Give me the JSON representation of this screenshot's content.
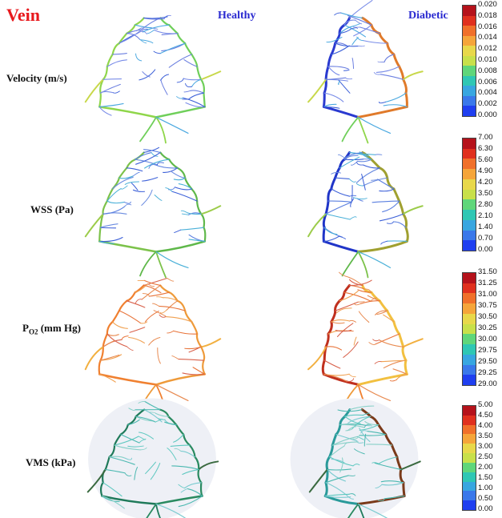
{
  "title": "Vein",
  "columns": {
    "healthy": "Healthy",
    "diabetic": "Diabetic"
  },
  "rows": [
    {
      "id": "velocity",
      "label": "Velocity (m/s)",
      "ticks": [
        "0.020",
        "0.018",
        "0.016",
        "0.014",
        "0.012",
        "0.010",
        "0.008",
        "0.006",
        "0.004",
        "0.002",
        "0.000"
      ]
    },
    {
      "id": "wss",
      "label": "WSS (Pa)",
      "ticks": [
        "7.00",
        "6.30",
        "5.60",
        "4.90",
        "4.20",
        "3.50",
        "2.80",
        "2.10",
        "1.40",
        "0.70",
        "0.00"
      ]
    },
    {
      "id": "po2",
      "label_main": "P",
      "label_sub": "O2",
      "label_rest": " (mm Hg)",
      "ticks": [
        "31.50",
        "31.25",
        "31.00",
        "30.75",
        "30.50",
        "30.25",
        "30.00",
        "29.75",
        "29.50",
        "29.25",
        "29.00"
      ]
    },
    {
      "id": "vms",
      "label": "VMS (kPa)",
      "ticks": [
        "5.00",
        "4.50",
        "4.00",
        "3.50",
        "3.00",
        "2.50",
        "2.00",
        "1.50",
        "1.00",
        "0.50",
        "0.00"
      ]
    }
  ],
  "colors": {
    "title": "#e8191d",
    "column_header": "#2a2ad0",
    "colorbar_top_to_bottom": [
      "#b5121b",
      "#e0301e",
      "#f0702a",
      "#f5a53a",
      "#e8d84a",
      "#c8e04a",
      "#5fd67a",
      "#2fc7b4",
      "#38a6e0",
      "#3a78ea",
      "#1f3ff0"
    ]
  }
}
